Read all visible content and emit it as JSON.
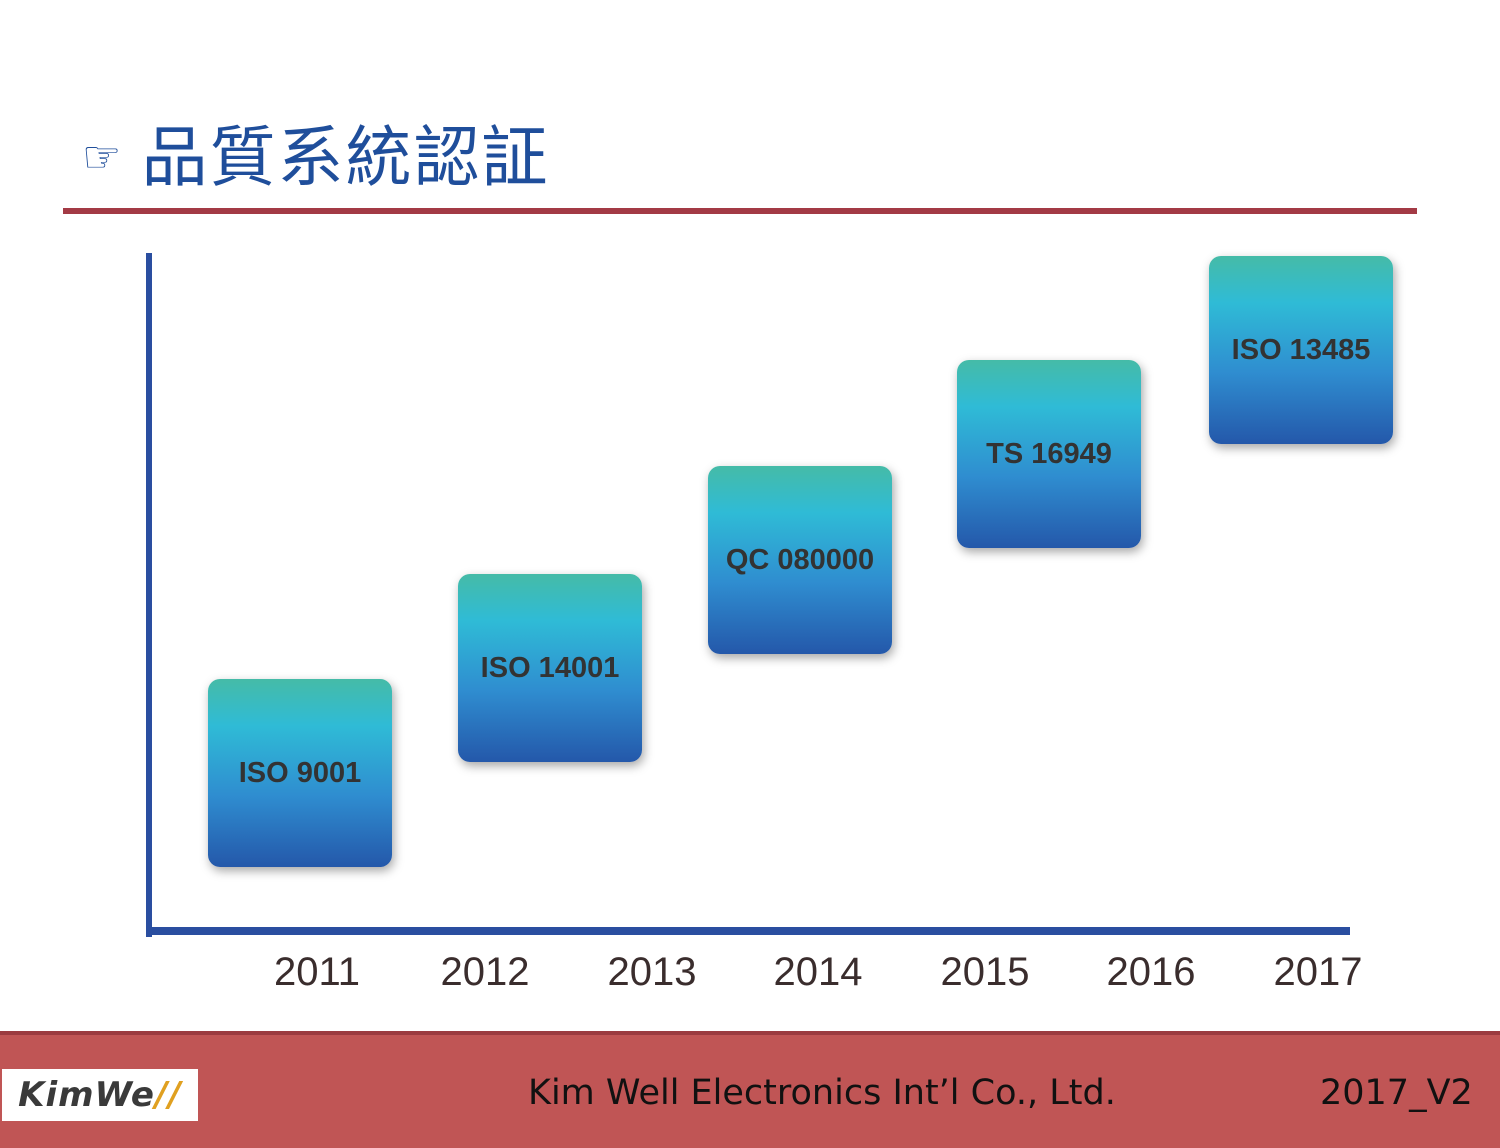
{
  "header": {
    "icon": "pointing-hand-icon",
    "title": "品質系統認証"
  },
  "colors": {
    "title": "#1f4e9b",
    "rule": "#a33a45",
    "axis": "#2a4ea0",
    "box_top": "#45bba7",
    "box_bottom": "#2458aa",
    "footer": "#c05555"
  },
  "timeline": {
    "years": [
      "2011",
      "2012",
      "2013",
      "2014",
      "2015",
      "2016",
      "2017"
    ],
    "certifications": [
      {
        "label": "ISO 9001"
      },
      {
        "label": "ISO 14001"
      },
      {
        "label": "QC 080000"
      },
      {
        "label": "TS 16949"
      },
      {
        "label": "ISO 13485"
      }
    ]
  },
  "footer": {
    "logo_prefix": "K",
    "logo_rest": "imWe",
    "logo_accent": "//",
    "company": "Kim Well Electronics Int’l Co., Ltd.",
    "version": "2017_V2"
  }
}
